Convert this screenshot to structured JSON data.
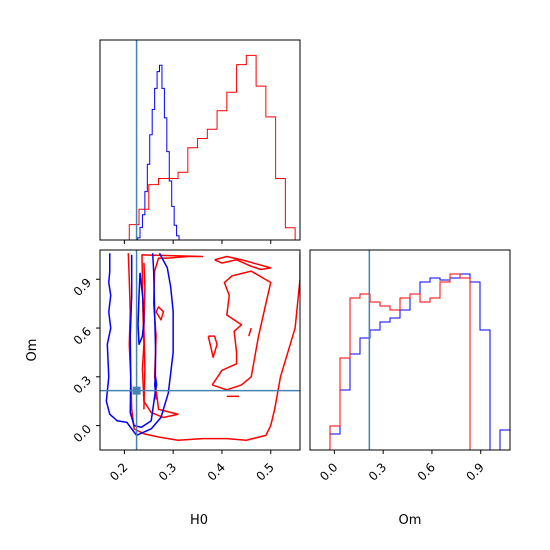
{
  "chart_data": {
    "type": "corner",
    "parameters": [
      "H0",
      "Om"
    ],
    "truth": {
      "H0": 0.225,
      "Om": 0.215
    },
    "colors": {
      "blue": "#0000ff",
      "red": "#ff0000",
      "truth": "#4682b4"
    },
    "h0_axis": {
      "range": [
        0.15,
        0.56
      ],
      "ticks": [
        0.2,
        0.3,
        0.4,
        0.5
      ],
      "tick_labels": [
        "0.2",
        "0.3",
        "0.4",
        "0.5"
      ],
      "label": "H0"
    },
    "om_axis": {
      "range": [
        -0.15,
        1.08
      ],
      "ticks": [
        0.0,
        0.3,
        0.6,
        0.9
      ],
      "tick_labels": [
        "0.0",
        "0.3",
        "0.6",
        "0.9"
      ],
      "label": "Om"
    },
    "hist_h0": {
      "bin_edges": [
        0.15,
        0.1705,
        0.191,
        0.2115,
        0.232,
        0.2525,
        0.273,
        0.2935,
        0.314,
        0.3345,
        0.355,
        0.3755,
        0.396,
        0.4165,
        0.437,
        0.4575,
        0.478,
        0.4985,
        0.519,
        0.5395,
        0.56
      ],
      "blue": [
        0,
        0,
        0.01,
        0.06,
        0.12,
        0.23,
        0.36,
        0.5,
        0.62,
        0.72,
        0.8,
        0.83,
        0.72,
        0.58,
        0.42,
        0.28,
        0.16,
        0.07,
        0.02,
        0
      ],
      "red": [
        0,
        0,
        0,
        0.05,
        0.1,
        0.18,
        0.2,
        0.2,
        0.22,
        0.3,
        0.33,
        0.36,
        0.42,
        0.48,
        0.57,
        0.6,
        0.5,
        0.4,
        0.2,
        0.04
      ],
      "blue_x_edges_override": [
        0.217,
        0.222,
        0.227,
        0.232,
        0.237,
        0.242,
        0.247,
        0.252,
        0.257,
        0.262,
        0.267,
        0.272,
        0.277,
        0.282,
        0.287,
        0.292,
        0.297,
        0.302,
        0.307,
        0.312,
        0.317
      ],
      "red_x_edges_override": [
        0.15,
        0.17,
        0.19,
        0.21,
        0.23,
        0.25,
        0.27,
        0.29,
        0.31,
        0.33,
        0.35,
        0.37,
        0.39,
        0.41,
        0.43,
        0.45,
        0.47,
        0.49,
        0.51,
        0.53,
        0.55
      ]
    },
    "hist_om": {
      "bin_edges": [
        -0.15,
        -0.0885,
        -0.027,
        0.0345,
        0.096,
        0.1575,
        0.219,
        0.2805,
        0.342,
        0.4035,
        0.465,
        0.5265,
        0.588,
        0.6495,
        0.711,
        0.7725,
        0.834,
        0.8955,
        0.957,
        1.0185,
        1.08
      ],
      "blue": [
        0,
        0.0,
        0.08,
        0.3,
        0.48,
        0.56,
        0.6,
        0.64,
        0.66,
        0.7,
        0.78,
        0.84,
        0.86,
        0.85,
        0.86,
        0.88,
        0.84,
        0.6,
        0.0,
        0.1
      ],
      "red": [
        0,
        0.0,
        0.12,
        0.46,
        0.76,
        0.78,
        0.74,
        0.72,
        0.7,
        0.76,
        0.78,
        0.74,
        0.76,
        0.84,
        0.88,
        0.86,
        0.0,
        0.0,
        0.0,
        0.0
      ]
    },
    "contours_2d": {
      "blue": [
        [
          [
            0.215,
            1.05
          ],
          [
            0.215,
            0.8
          ],
          [
            0.212,
            0.55
          ],
          [
            0.213,
            0.3
          ],
          [
            0.212,
            0.08
          ],
          [
            0.22,
            0.0
          ],
          [
            0.235,
            -0.01
          ],
          [
            0.255,
            0.03
          ],
          [
            0.263,
            0.2
          ],
          [
            0.264,
            0.45
          ],
          [
            0.262,
            0.7
          ],
          [
            0.26,
            0.95
          ],
          [
            0.258,
            1.06
          ]
        ],
        [
          [
            0.17,
            1.06
          ],
          [
            0.17,
            0.95
          ],
          [
            0.168,
            0.88
          ],
          [
            0.172,
            0.8
          ],
          [
            0.168,
            0.7
          ],
          [
            0.172,
            0.6
          ],
          [
            0.165,
            0.5
          ],
          [
            0.168,
            0.3
          ],
          [
            0.163,
            0.15
          ],
          [
            0.17,
            0.07
          ],
          [
            0.185,
            0.03
          ],
          [
            0.205,
            0.02
          ],
          [
            0.225,
            -0.06
          ],
          [
            0.255,
            -0.02
          ],
          [
            0.275,
            0.05
          ],
          [
            0.29,
            0.2
          ],
          [
            0.3,
            0.45
          ],
          [
            0.3,
            0.7
          ],
          [
            0.295,
            0.85
          ],
          [
            0.288,
            0.97
          ],
          [
            0.272,
            1.06
          ]
        ],
        [
          [
            0.232,
            0.94
          ],
          [
            0.238,
            0.78
          ],
          [
            0.24,
            0.64
          ],
          [
            0.237,
            0.55
          ],
          [
            0.23,
            0.5
          ],
          [
            0.228,
            0.62
          ],
          [
            0.23,
            0.8
          ],
          [
            0.232,
            0.94
          ]
        ],
        [
          [
            0.262,
            0.25
          ],
          [
            0.264,
            0.3
          ],
          [
            0.266,
            0.25
          ],
          [
            0.264,
            0.22
          ],
          [
            0.262,
            0.25
          ]
        ]
      ],
      "red": [
        [
          [
            0.208,
            1.06
          ],
          [
            0.21,
            0.9
          ],
          [
            0.212,
            0.7
          ],
          [
            0.21,
            0.5
          ],
          [
            0.213,
            0.3
          ],
          [
            0.215,
            0.1
          ],
          [
            0.22,
            -0.02
          ],
          [
            0.24,
            -0.05
          ],
          [
            0.27,
            -0.07
          ],
          [
            0.31,
            -0.09
          ],
          [
            0.36,
            -0.08
          ],
          [
            0.41,
            -0.08
          ],
          [
            0.45,
            -0.09
          ],
          [
            0.49,
            -0.06
          ],
          [
            0.5,
            0.0
          ],
          [
            0.508,
            0.1
          ],
          [
            0.52,
            0.3
          ],
          [
            0.535,
            0.45
          ],
          [
            0.55,
            0.6
          ],
          [
            0.555,
            0.75
          ],
          [
            0.56,
            0.9
          ],
          [
            0.56,
            1.06
          ]
        ],
        [
          [
            0.236,
            1.05
          ],
          [
            0.237,
            0.9
          ],
          [
            0.238,
            0.7
          ],
          [
            0.24,
            0.5
          ],
          [
            0.237,
            0.35
          ],
          [
            0.24,
            0.15
          ],
          [
            0.255,
            0.08
          ],
          [
            0.28,
            0.05
          ],
          [
            0.31,
            0.07
          ],
          [
            0.27,
            0.1
          ],
          [
            0.262,
            0.3
          ],
          [
            0.265,
            0.55
          ],
          [
            0.26,
            0.75
          ],
          [
            0.262,
            0.95
          ],
          [
            0.27,
            1.03
          ],
          [
            0.29,
            1.03
          ],
          [
            0.33,
            1.04
          ],
          [
            0.36,
            1.04
          ],
          [
            0.235,
            1.05
          ]
        ],
        [
          [
            0.38,
            0.25
          ],
          [
            0.41,
            0.22
          ],
          [
            0.44,
            0.25
          ],
          [
            0.46,
            0.3
          ],
          [
            0.475,
            0.55
          ],
          [
            0.49,
            0.75
          ],
          [
            0.5,
            0.88
          ],
          [
            0.46,
            0.95
          ],
          [
            0.42,
            0.92
          ],
          [
            0.405,
            0.88
          ],
          [
            0.415,
            0.8
          ],
          [
            0.41,
            0.68
          ],
          [
            0.44,
            0.62
          ],
          [
            0.425,
            0.58
          ],
          [
            0.43,
            0.45
          ],
          [
            0.43,
            0.38
          ],
          [
            0.4,
            0.34
          ],
          [
            0.38,
            0.25
          ]
        ],
        [
          [
            0.372,
            0.55
          ],
          [
            0.382,
            0.42
          ],
          [
            0.39,
            0.5
          ],
          [
            0.385,
            0.55
          ],
          [
            0.372,
            0.55
          ]
        ],
        [
          [
            0.41,
            0.18
          ],
          [
            0.435,
            0.18
          ]
        ],
        [
          [
            0.455,
            0.55
          ],
          [
            0.46,
            0.6
          ]
        ],
        [
          [
            0.385,
            1.02
          ],
          [
            0.4,
            1.0
          ],
          [
            0.43,
            1.02
          ],
          [
            0.46,
            0.98
          ],
          [
            0.48,
            0.96
          ],
          [
            0.5,
            0.97
          ],
          [
            0.44,
            1.02
          ],
          [
            0.41,
            1.04
          ],
          [
            0.385,
            1.02
          ]
        ],
        [
          [
            0.265,
            0.7
          ],
          [
            0.275,
            0.65
          ],
          [
            0.28,
            0.7
          ],
          [
            0.27,
            0.73
          ],
          [
            0.265,
            0.7
          ]
        ],
        [
          [
            0.265,
            0.16
          ],
          [
            0.265,
            0.22
          ]
        ],
        [
          [
            0.24,
            0.1
          ],
          [
            0.242,
            0.35
          ],
          [
            0.24,
            0.6
          ],
          [
            0.242,
            0.85
          ],
          [
            0.24,
            1.0
          ]
        ]
      ]
    }
  }
}
